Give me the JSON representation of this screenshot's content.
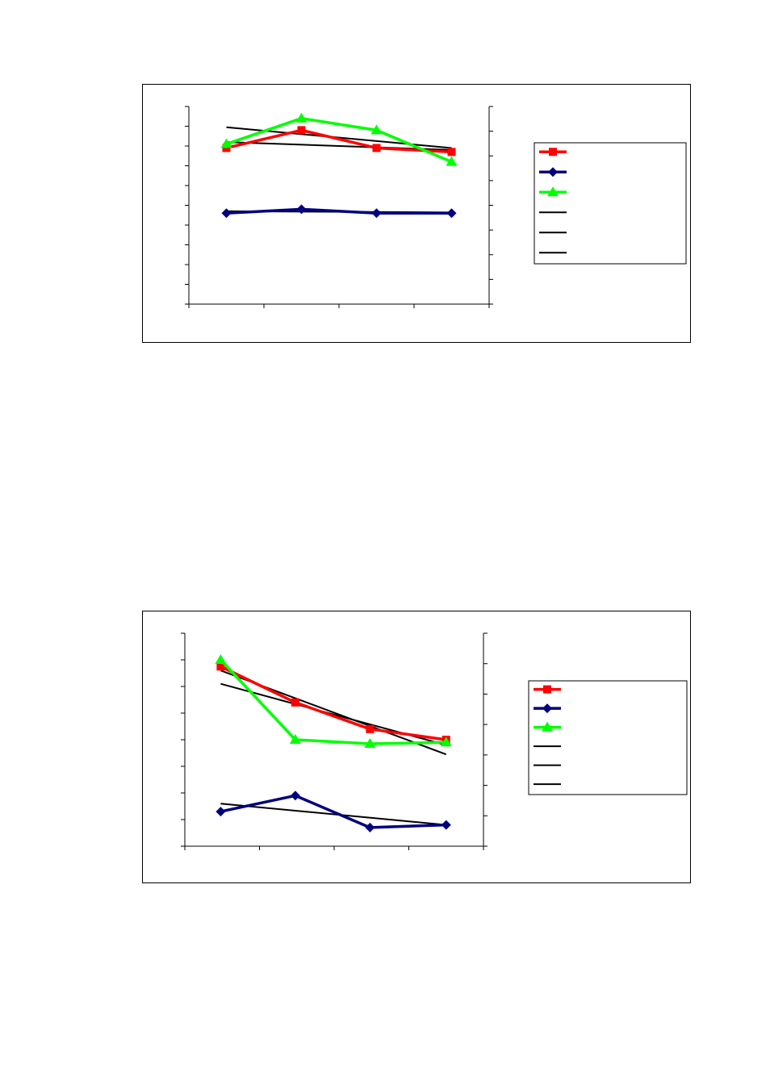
{
  "chart_data": [
    {
      "type": "line",
      "title": "",
      "xlabel": "",
      "ylabel": "",
      "categories": [
        "",
        "",
        "",
        ""
      ],
      "ylim": [
        0,
        10
      ],
      "y2lim": [
        0,
        8
      ],
      "grid": false,
      "legend_position": "right",
      "series": [
        {
          "color": "#ff0000",
          "marker": "square",
          "axis": "left",
          "values": [
            7.9,
            8.8,
            7.9,
            7.7
          ]
        },
        {
          "color": "#000080",
          "marker": "diamond",
          "axis": "left",
          "values": [
            4.6,
            4.8,
            4.6,
            4.6
          ]
        },
        {
          "color": "#00ff00",
          "marker": "triangle",
          "axis": "left",
          "values": [
            8.1,
            9.4,
            8.8,
            7.2
          ]
        }
      ],
      "trendlines": [
        {
          "color": "#000000",
          "values": [
            8.95,
            8.6,
            8.25,
            7.9
          ]
        },
        {
          "color": "#000000",
          "values": [
            4.7,
            4.68,
            4.66,
            4.64
          ]
        },
        {
          "color": "#000000",
          "values": [
            8.2,
            8.1,
            7.95,
            7.8
          ]
        }
      ],
      "legend_entries": [
        "",
        "",
        "",
        "",
        "",
        ""
      ]
    },
    {
      "type": "line",
      "title": "",
      "xlabel": "",
      "ylabel": "",
      "categories": [
        "",
        "",
        "",
        ""
      ],
      "ylim": [
        0,
        8
      ],
      "y2lim": [
        0,
        7
      ],
      "grid": false,
      "legend_position": "right",
      "series": [
        {
          "color": "#ff0000",
          "marker": "square",
          "axis": "left",
          "values": [
            6.75,
            5.4,
            4.4,
            4.0
          ]
        },
        {
          "color": "#000080",
          "marker": "diamond",
          "axis": "left",
          "values": [
            1.3,
            1.9,
            0.7,
            0.8
          ]
        },
        {
          "color": "#00ff00",
          "marker": "triangle",
          "axis": "left",
          "values": [
            7.0,
            4.0,
            3.85,
            3.9
          ]
        }
      ],
      "trendlines": [
        {
          "color": "#000000",
          "values": [
            6.6,
            5.55,
            4.5,
            3.45
          ]
        },
        {
          "color": "#000000",
          "values": [
            1.6,
            1.3,
            1.0,
            0.8
          ]
        },
        {
          "color": "#000000",
          "values": [
            6.1,
            5.1,
            4.3,
            3.8
          ]
        }
      ],
      "legend_entries": [
        "",
        "",
        "",
        "",
        "",
        ""
      ]
    }
  ]
}
